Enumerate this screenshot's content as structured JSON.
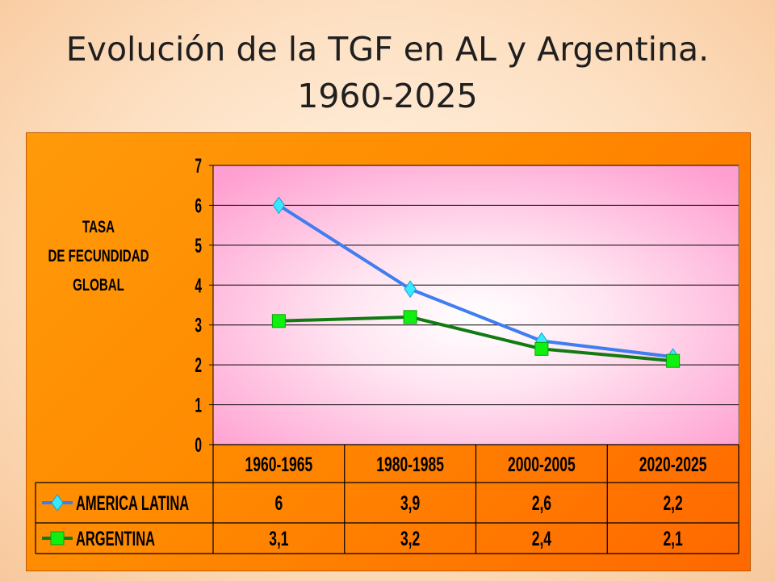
{
  "title": {
    "line1": "Evolución de la TGF en AL y Argentina.",
    "line2": "1960-2025"
  },
  "chart_data": {
    "type": "line",
    "ylabel": [
      "TASA",
      "DE FECUNDIDAD",
      "GLOBAL"
    ],
    "categories": [
      "1960-1965",
      "1980-1985",
      "2000-2005",
      "2020-2025"
    ],
    "ylim": [
      0,
      7
    ],
    "yticks": [
      "0",
      "1",
      "2",
      "3",
      "4",
      "5",
      "6",
      "7"
    ],
    "grid": true,
    "legend": "data-table-bottom",
    "series": [
      {
        "name": "AMERICA LATINA",
        "values": [
          6,
          3.9,
          2.6,
          2.2
        ],
        "labels": [
          "6",
          "3,9",
          "2,6",
          "2,2"
        ],
        "color": "#3f7df0",
        "marker": "diamond",
        "marker_color": "#38e8ff"
      },
      {
        "name": "ARGENTINA",
        "values": [
          3.1,
          3.2,
          2.4,
          2.1
        ],
        "labels": [
          "3,1",
          "3,2",
          "2,4",
          "2,1"
        ],
        "color": "#127a12",
        "marker": "square",
        "marker_color": "#10f010"
      }
    ]
  },
  "colors": {
    "plot_bg_center": "#ffffff",
    "plot_bg_edge": "#ff9ed0",
    "frame_bg": "#ff8a00"
  }
}
